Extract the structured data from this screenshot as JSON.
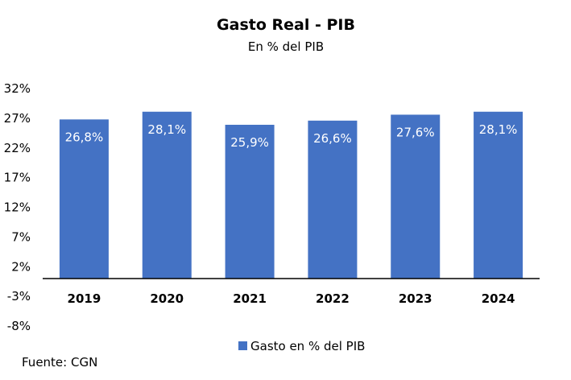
{
  "chart_data": {
    "type": "bar",
    "title": "Gasto Real - PIB",
    "subtitle": "En % del PIB",
    "categories": [
      "2019",
      "2020",
      "2021",
      "2022",
      "2023",
      "2024"
    ],
    "series": [
      {
        "name": "Gasto en % del PIB",
        "values": [
          26.8,
          28.1,
          25.9,
          26.6,
          27.6,
          28.1
        ],
        "labels": [
          "26,8%",
          "28,1%",
          "25,9%",
          "26,6%",
          "27,6%",
          "28,1%"
        ],
        "color": "#4472C4"
      }
    ],
    "yticks": [
      32,
      27,
      22,
      17,
      12,
      7,
      2,
      -3,
      -8
    ],
    "ytick_labels": [
      "32%",
      "27%",
      "22%",
      "17%",
      "12%",
      "7%",
      "2%",
      "-3%",
      "-8%"
    ],
    "ylim": [
      -8,
      32
    ],
    "baseline": 0,
    "grid": false,
    "legend": "bottom",
    "source": "Fuente: CGN"
  }
}
